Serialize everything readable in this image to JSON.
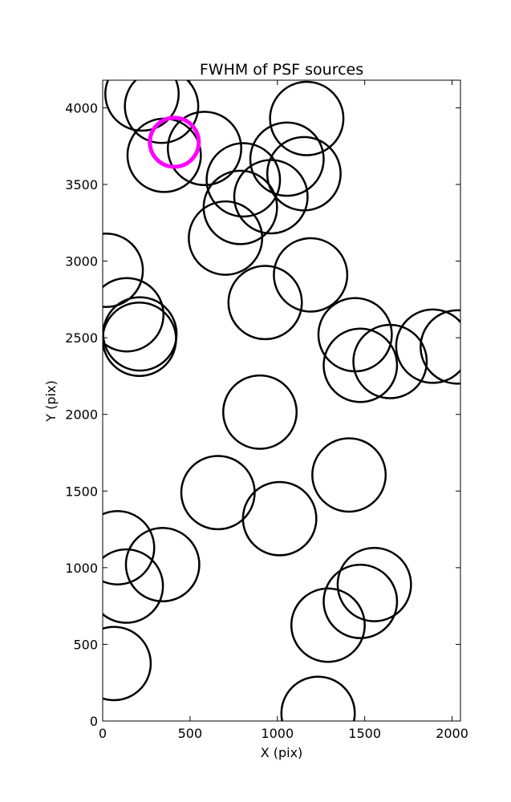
{
  "chart_data": {
    "type": "scatter",
    "title": "FWHM of PSF sources",
    "xlabel": "X (pix)",
    "ylabel": "Y (pix)",
    "xlim": [
      0,
      2048
    ],
    "ylim": [
      0,
      4180
    ],
    "xticks": [
      0,
      500,
      1000,
      1500,
      2000
    ],
    "yticks": [
      0,
      500,
      1000,
      1500,
      2000,
      2500,
      3000,
      3500,
      4000
    ],
    "grid": false,
    "legend": "none",
    "series": [
      {
        "color": "#000000",
        "marker": "open-circle",
        "points": [
          {
            "x": 225,
            "y": 4090,
            "r": 210
          },
          {
            "x": 337,
            "y": 4010,
            "r": 210
          },
          {
            "x": 583,
            "y": 3735,
            "r": 210
          },
          {
            "x": 352,
            "y": 3690,
            "r": 210
          },
          {
            "x": 1168,
            "y": 3930,
            "r": 210
          },
          {
            "x": 1055,
            "y": 3665,
            "r": 210
          },
          {
            "x": 805,
            "y": 3530,
            "r": 210
          },
          {
            "x": 1152,
            "y": 3570,
            "r": 210
          },
          {
            "x": 963,
            "y": 3420,
            "r": 210
          },
          {
            "x": 788,
            "y": 3350,
            "r": 210
          },
          {
            "x": 703,
            "y": 3150,
            "r": 210
          },
          {
            "x": 20,
            "y": 2940,
            "r": 210
          },
          {
            "x": 1190,
            "y": 2910,
            "r": 210
          },
          {
            "x": 930,
            "y": 2730,
            "r": 210
          },
          {
            "x": 138,
            "y": 2650,
            "r": 210
          },
          {
            "x": 213,
            "y": 2525,
            "r": 210
          },
          {
            "x": 210,
            "y": 2490,
            "r": 210
          },
          {
            "x": 1445,
            "y": 2520,
            "r": 210
          },
          {
            "x": 1890,
            "y": 2445,
            "r": 210
          },
          {
            "x": 2030,
            "y": 2440,
            "r": 210
          },
          {
            "x": 1645,
            "y": 2345,
            "r": 210
          },
          {
            "x": 1475,
            "y": 2320,
            "r": 210
          },
          {
            "x": 900,
            "y": 2015,
            "r": 210
          },
          {
            "x": 1410,
            "y": 1605,
            "r": 210
          },
          {
            "x": 660,
            "y": 1490,
            "r": 210
          },
          {
            "x": 1013,
            "y": 1320,
            "r": 210
          },
          {
            "x": 85,
            "y": 1130,
            "r": 210
          },
          {
            "x": 343,
            "y": 1020,
            "r": 210
          },
          {
            "x": 135,
            "y": 880,
            "r": 210
          },
          {
            "x": 1555,
            "y": 890,
            "r": 210
          },
          {
            "x": 1475,
            "y": 780,
            "r": 210
          },
          {
            "x": 1290,
            "y": 625,
            "r": 210
          },
          {
            "x": 65,
            "y": 375,
            "r": 210
          },
          {
            "x": 1233,
            "y": 50,
            "r": 210
          }
        ]
      },
      {
        "color": "#ff00ff",
        "marker": "open-circle",
        "points": [
          {
            "x": 410,
            "y": 3775,
            "r": 140
          }
        ]
      }
    ]
  }
}
